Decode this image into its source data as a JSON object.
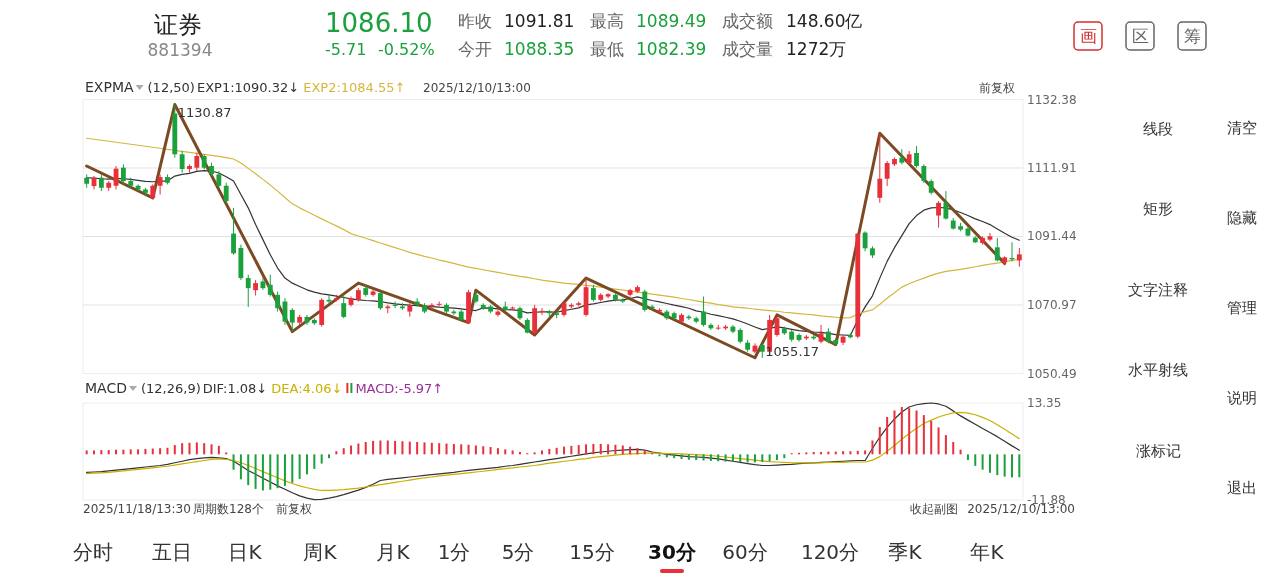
{
  "chart_data": [
    {
      "type": "other",
      "title": "证券",
      "annotations": [
        "881394",
        "1086.10",
        "-5.71",
        "-0.52%",
        "昨收",
        "1091.81",
        "今开",
        "1088.35",
        "最高",
        "1089.49",
        "最低",
        "1082.39",
        "成交额",
        "148.60亿",
        "成交量",
        "1272万",
        "画",
        "区",
        "筹"
      ]
    },
    {
      "type": "candlestick",
      "title": "EXPMA",
      "subtitle": "(12,50)",
      "legend": "top left",
      "grid": "y",
      "tick_labels": "y",
      "ylim": [
        1050.49,
        1132.38
      ],
      "yticks": [
        1132.38,
        1111.91,
        1091.44,
        1070.97,
        1050.49
      ],
      "categories": [
        null,
        null,
        null,
        null,
        null,
        null,
        null,
        null,
        null,
        null,
        null,
        null,
        null,
        null,
        null,
        null,
        null,
        null,
        null,
        null,
        null,
        null,
        null,
        null,
        null,
        null,
        null,
        null,
        null,
        null,
        null,
        null,
        null,
        null,
        null,
        null,
        null,
        null,
        null,
        null,
        null,
        null,
        null,
        null,
        null,
        null,
        null,
        null,
        null,
        null,
        null,
        null,
        null,
        null,
        null,
        null,
        null,
        null,
        null,
        null,
        null,
        null,
        null,
        null,
        null,
        null,
        null,
        null,
        null,
        null,
        null,
        null,
        null,
        null,
        null,
        null,
        null,
        null,
        null,
        null,
        null,
        null,
        null,
        null,
        null,
        null,
        null,
        null,
        null,
        null,
        null,
        null,
        null,
        null,
        null,
        null,
        null,
        null,
        null,
        null,
        null,
        null,
        null,
        null,
        null,
        null,
        null,
        null,
        null,
        null,
        null,
        null,
        null,
        null,
        null,
        null,
        null,
        null,
        null,
        null,
        null,
        null,
        null,
        null,
        null,
        null,
        null,
        null
      ],
      "ohlc": [
        [
          1109,
          1110,
          1106,
          1107.2
        ],
        [
          1106.5,
          1109.5,
          1105.5,
          1109
        ],
        [
          1109,
          1110,
          1105,
          1106
        ],
        [
          1106,
          1108,
          1105,
          1107.5
        ],
        [
          1106.6,
          1112.5,
          1105.5,
          1111.7
        ],
        [
          1112,
          1113,
          1107,
          1108
        ],
        [
          1108,
          1109,
          1106,
          1106.6
        ],
        [
          1106.6,
          1107,
          1105,
          1105.5
        ],
        [
          1105.5,
          1106,
          1103.5,
          1104.5
        ],
        [
          1103,
          1107,
          1102.5,
          1106.6
        ],
        [
          1106.6,
          1110,
          1104,
          1109.2
        ],
        [
          1109.2,
          1110,
          1107,
          1107.5
        ],
        [
          1128.2,
          1130.87,
          1115,
          1116
        ],
        [
          1116,
          1117,
          1110.5,
          1111.6
        ],
        [
          1111.6,
          1113,
          1110.5,
          1112.5
        ],
        [
          1112,
          1116.5,
          1111,
          1115.5
        ],
        [
          1115.5,
          1116,
          1111.5,
          1112
        ],
        [
          1112.5,
          1113.5,
          1109.5,
          1110.1
        ],
        [
          1110,
          1111,
          1106,
          1106.6
        ],
        [
          1106.6,
          1107.5,
          1101.5,
          1102
        ],
        [
          1092.3,
          1100,
          1086,
          1086.4
        ],
        [
          1088,
          1089,
          1078.4,
          1079
        ],
        [
          1079,
          1080,
          1070.4,
          1076
        ],
        [
          1075.4,
          1078.4,
          1073.8,
          1077.5
        ],
        [
          1078,
          1079,
          1075.5,
          1076
        ],
        [
          1077,
          1080,
          1073.5,
          1074
        ],
        [
          1074,
          1075,
          1069,
          1070
        ],
        [
          1072,
          1073,
          1065,
          1066
        ],
        [
          1069.5,
          1070,
          1063,
          1065.7
        ],
        [
          1065.7,
          1068,
          1065,
          1067.4
        ],
        [
          1067.4,
          1068,
          1065,
          1065.7
        ],
        [
          1066.5,
          1067,
          1065,
          1065.5
        ],
        [
          1065,
          1073,
          1064.5,
          1072.5
        ],
        [
          1072.5,
          1074,
          1071.5,
          1072
        ],
        [
          1072.5,
          1074,
          1072,
          1073
        ],
        [
          1071.5,
          1074,
          1067,
          1067.4
        ],
        [
          1071,
          1073.5,
          1070.5,
          1073
        ],
        [
          1072.5,
          1076,
          1072,
          1075.4
        ],
        [
          1076,
          1077,
          1073.5,
          1074
        ],
        [
          1074,
          1075.5,
          1073.5,
          1075
        ],
        [
          1074.5,
          1075,
          1069.5,
          1070
        ],
        [
          1070,
          1071,
          1068.5,
          1070.5
        ],
        [
          1071,
          1072,
          1070,
          1070.8
        ],
        [
          1070.5,
          1071.5,
          1069.5,
          1070
        ],
        [
          1069,
          1071.5,
          1067.5,
          1070.8
        ],
        [
          1072,
          1073,
          1070.5,
          1071
        ],
        [
          1070.8,
          1071.5,
          1068.5,
          1069
        ],
        [
          1070.5,
          1071.5,
          1069.5,
          1071
        ],
        [
          1071,
          1072,
          1070.5,
          1071.3
        ],
        [
          1071,
          1071.5,
          1068.5,
          1069
        ],
        [
          1069,
          1069.5,
          1068,
          1068.5
        ],
        [
          1069,
          1069.5,
          1066,
          1066.5
        ],
        [
          1065.7,
          1075.5,
          1065.5,
          1074.8
        ],
        [
          1074,
          1075,
          1071.5,
          1072
        ],
        [
          1071,
          1071.5,
          1069.5,
          1070
        ],
        [
          1070.5,
          1071,
          1068.5,
          1069
        ],
        [
          1068,
          1069.5,
          1067.5,
          1069
        ],
        [
          1070.5,
          1072,
          1069,
          1069.5
        ],
        [
          1070,
          1070.5,
          1069.5,
          1070.2
        ],
        [
          1070,
          1070.5,
          1066.5,
          1067
        ],
        [
          1066.5,
          1067,
          1062.5,
          1062.7
        ],
        [
          1062.7,
          1071,
          1062,
          1070
        ],
        [
          1069,
          1070,
          1068,
          1069.2
        ],
        [
          1069,
          1069.5,
          1067.5,
          1068.5
        ],
        [
          1068.5,
          1069,
          1067,
          1068
        ],
        [
          1068,
          1072,
          1067.5,
          1071.5
        ],
        [
          1070.5,
          1071.5,
          1070,
          1071
        ],
        [
          1071,
          1072,
          1070.5,
          1071.5
        ],
        [
          1068,
          1079,
          1067.5,
          1076.3
        ],
        [
          1076,
          1077,
          1072,
          1072.5
        ],
        [
          1072.5,
          1074.5,
          1072,
          1074
        ],
        [
          1073.5,
          1074.5,
          1073,
          1074.2
        ],
        [
          1074,
          1074.5,
          1072,
          1072.5
        ],
        [
          1072.5,
          1073,
          1071.5,
          1072
        ],
        [
          1074,
          1075.8,
          1073.5,
          1075.4
        ],
        [
          1075,
          1076.8,
          1074.5,
          1076.3
        ],
        [
          1075,
          1075.5,
          1069,
          1069.5
        ],
        [
          1070.5,
          1071,
          1069.5,
          1070
        ],
        [
          1069,
          1070,
          1068.5,
          1069.5
        ],
        [
          1069,
          1069.5,
          1066.5,
          1067
        ],
        [
          1068.5,
          1069,
          1066.5,
          1067
        ],
        [
          1066,
          1068.5,
          1065.5,
          1068
        ],
        [
          1067.5,
          1068,
          1066.5,
          1067
        ],
        [
          1067,
          1067.5,
          1065.5,
          1066
        ],
        [
          1069,
          1073.5,
          1064.5,
          1065
        ],
        [
          1065,
          1065.5,
          1063.5,
          1064
        ],
        [
          1064,
          1065,
          1063.5,
          1064.2
        ],
        [
          1064,
          1065,
          1063.5,
          1064.5
        ],
        [
          1064.5,
          1065,
          1062.5,
          1063
        ],
        [
          1063.5,
          1064,
          1059.5,
          1060
        ],
        [
          1059.7,
          1060.5,
          1057,
          1057.6
        ],
        [
          1057,
          1059.5,
          1056.5,
          1058.8
        ],
        [
          1059,
          1059.5,
          1055.17,
          1057
        ],
        [
          1057,
          1068,
          1056.5,
          1066.5
        ],
        [
          1062,
          1067.5,
          1061.5,
          1067
        ],
        [
          1064,
          1064.5,
          1062,
          1062.5
        ],
        [
          1063,
          1063.5,
          1060,
          1060.6
        ],
        [
          1062,
          1062.5,
          1060,
          1060.5
        ],
        [
          1061,
          1062,
          1060.5,
          1061.5
        ],
        [
          1061.5,
          1062,
          1060.5,
          1061
        ],
        [
          1060,
          1065,
          1059.5,
          1062.5
        ],
        [
          1063,
          1064,
          1059.5,
          1060
        ],
        [
          1060.5,
          1061,
          1059,
          1059.3
        ],
        [
          1059.7,
          1062,
          1059,
          1061.5
        ],
        [
          1062,
          1062.5,
          1061,
          1061.3
        ],
        [
          1061.5,
          1092.5,
          1061,
          1092.3
        ],
        [
          1092.6,
          1093,
          1087,
          1087.9
        ],
        [
          1087.9,
          1088.5,
          1085,
          1085.8
        ],
        [
          1103,
          1122.3,
          1101.5,
          1108.7
        ],
        [
          1108.7,
          1114,
          1106.5,
          1113.4
        ],
        [
          1113,
          1115,
          1112.5,
          1114.6
        ],
        [
          1115,
          1117.5,
          1113,
          1113.5
        ],
        [
          1113.4,
          1117,
          1113,
          1116
        ],
        [
          1116.4,
          1118.5,
          1112,
          1112.5
        ],
        [
          1112.5,
          1113,
          1107.5,
          1108
        ],
        [
          1108,
          1108.5,
          1104,
          1104.5
        ],
        [
          1097.7,
          1102,
          1094.1,
          1101.5
        ],
        [
          1101.5,
          1105,
          1096.5,
          1096.8
        ],
        [
          1096.2,
          1097,
          1093.5,
          1093.8
        ],
        [
          1094.5,
          1095.5,
          1093,
          1093.5
        ],
        [
          1093.8,
          1094.5,
          1091.5,
          1091.7
        ],
        [
          1091.1,
          1091.5,
          1089.5,
          1089.7
        ],
        [
          1089.5,
          1091.5,
          1089,
          1091
        ],
        [
          1090.5,
          1092.5,
          1090,
          1091.5
        ],
        [
          1088.2,
          1091,
          1084,
          1084.3
        ],
        [
          1083.7,
          1085.5,
          1082.8,
          1085.2
        ],
        [
          1085,
          1089.7,
          1084,
          1084.6
        ],
        [
          1084.3,
          1088,
          1082.39,
          1086.1
        ]
      ],
      "series": [
        {
          "type": "line",
          "name": "EXP1:1090.32↓",
          "color": "#333333",
          "values": [
            1109,
            1108.9,
            1108.7,
            1108.6,
            1108.8,
            1108.7,
            1108.5,
            1108.2,
            1107.9,
            1107.8,
            1108,
            1108,
            1109.5,
            1110,
            1110.3,
            1110.9,
            1111.1,
            1111,
            1110.4,
            1109.3,
            1108,
            1104,
            1100,
            1095,
            1090.5,
            1086,
            1082,
            1079,
            1077.5,
            1076.5,
            1075.5,
            1074.8,
            1074.3,
            1074,
            1073.6,
            1073.2,
            1072.8,
            1072.5,
            1072.3,
            1072.2,
            1072,
            1071.6,
            1071.3,
            1071.1,
            1070.9,
            1070.8,
            1070.7,
            1070.5,
            1070.3,
            1070.2,
            1070,
            1069.8,
            1069.5,
            1069.3,
            1070.1,
            1070,
            1069.8,
            1069.6,
            1069.5,
            1069.3,
            1068.6,
            1068.8,
            1068.9,
            1068.9,
            1068.8,
            1069.3,
            1069.7,
            1070.1,
            1071,
            1071.3,
            1071.7,
            1072.1,
            1072.4,
            1072.5,
            1072.9,
            1073.4,
            1072.8,
            1072.3,
            1071.9,
            1071.4,
            1070.9,
            1070.5,
            1070,
            1069.2,
            1068.8,
            1068.2,
            1067.8,
            1067.3,
            1066.8,
            1066.1,
            1065.3,
            1064.4,
            1063.6,
            1064,
            1064.4,
            1064.1,
            1063.7,
            1063.3,
            1063.1,
            1062.9,
            1062.8,
            1062.5,
            1062.1,
            1062,
            1061.9,
            1066.5,
            1070.4,
            1073.7,
            1079,
            1084,
            1088.1,
            1091.7,
            1095.3,
            1097.7,
            1099.3,
            1100,
            1100.1,
            1100,
            1099.4,
            1098.6,
            1097.7,
            1096.7,
            1095.9,
            1095,
            1093.7,
            1092.4,
            1091.2,
            1090.32
          ]
        },
        {
          "type": "line",
          "name": "EXP2:1084.55↑",
          "color": "#d4b73c",
          "values": [
            1120.8,
            1120.5,
            1120.2,
            1119.9,
            1119.6,
            1119.3,
            1119,
            1118.7,
            1118.4,
            1118.1,
            1117.8,
            1117.5,
            1117.2,
            1116.9,
            1116.6,
            1116.3,
            1116,
            1115.7,
            1115.4,
            1115,
            1114.6,
            1113.4,
            1111.8,
            1110.2,
            1108.5,
            1106.8,
            1105,
            1103.1,
            1101.2,
            1100,
            1098.9,
            1097.8,
            1096.7,
            1095.6,
            1094.6,
            1093.5,
            1092.3,
            1091.6,
            1090.9,
            1090.2,
            1089.5,
            1088.8,
            1088.1,
            1087.4,
            1086.7,
            1086.1,
            1085.5,
            1085,
            1084.4,
            1083.9,
            1083.4,
            1082.8,
            1082.3,
            1081.9,
            1081.5,
            1081.1,
            1080.7,
            1080.3,
            1079.9,
            1079.5,
            1079.2,
            1078.8,
            1078.4,
            1078.1,
            1077.8,
            1077.5,
            1077.3,
            1077.1,
            1076.8,
            1076.6,
            1076.3,
            1076,
            1075.7,
            1075.4,
            1075.1,
            1074.8,
            1074.5,
            1074.2,
            1073.9,
            1073.6,
            1073.3,
            1072.9,
            1072.6,
            1072.2,
            1071.8,
            1071.5,
            1071.1,
            1070.8,
            1070.4,
            1070.2,
            1070,
            1069.7,
            1069.5,
            1069.3,
            1069.1,
            1068.8,
            1068.6,
            1068.4,
            1068.2,
            1068,
            1067.7,
            1067.5,
            1067.3,
            1067.1,
            1067.2,
            1068.2,
            1069,
            1069.5,
            1071.2,
            1073,
            1074.6,
            1076.3,
            1077.3,
            1078.2,
            1079,
            1079.8,
            1080.5,
            1081,
            1081.3,
            1081.6,
            1082,
            1082.4,
            1082.8,
            1083.2,
            1083.5,
            1083.9,
            1084.3,
            1084.55
          ]
        },
        {
          "type": "line",
          "color": "#7b4a22",
          "values": [
            1112.5,
            null,
            null,
            null,
            null,
            null,
            null,
            null,
            null,
            1103,
            null,
            null,
            1130.87,
            null,
            null,
            null,
            null,
            null,
            null,
            null,
            null,
            null,
            null,
            null,
            null,
            null,
            null,
            null,
            1063,
            null,
            null,
            null,
            null,
            null,
            null,
            null,
            null,
            1077.5,
            null,
            null,
            null,
            null,
            null,
            null,
            null,
            null,
            null,
            null,
            null,
            null,
            null,
            null,
            1065.7,
            1075.4,
            null,
            null,
            null,
            null,
            null,
            null,
            null,
            1062,
            null,
            null,
            null,
            null,
            null,
            null,
            1079,
            null,
            null,
            null,
            null,
            null,
            null,
            null,
            null,
            null,
            null,
            null,
            null,
            null,
            null,
            null,
            null,
            null,
            null,
            null,
            null,
            null,
            null,
            1055.2,
            null,
            null,
            1068,
            null,
            null,
            null,
            null,
            null,
            null,
            null,
            1059.1,
            null,
            null,
            null,
            null,
            null,
            1122.3,
            null,
            null,
            null,
            null,
            null,
            null,
            null,
            null,
            null,
            null,
            null,
            null,
            null,
            null,
            null,
            null,
            1083.4,
            null,
            null
          ]
        }
      ],
      "annotations": [
        "1130.87",
        "1055.17",
        "2025/12/10/13:00",
        "前复权"
      ]
    },
    {
      "type": "bar",
      "title": "MACD",
      "subtitle": "(12,26,9)",
      "legend": "top left",
      "tick_labels": "y",
      "ylim": [
        -11.88,
        13.35
      ],
      "yticks": [
        13.35,
        -11.88
      ],
      "categories": [
        null,
        null,
        null,
        null,
        null,
        null,
        null,
        null,
        null,
        null,
        null,
        null,
        null,
        null,
        null,
        null,
        null,
        null,
        null,
        null,
        null,
        null,
        null,
        null,
        null,
        null,
        null,
        null,
        null,
        null,
        null,
        null,
        null,
        null,
        null,
        null,
        null,
        null,
        null,
        null,
        null,
        null,
        null,
        null,
        null,
        null,
        null,
        null,
        null,
        null,
        null,
        null,
        null,
        null,
        null,
        null,
        null,
        null,
        null,
        null,
        null,
        null,
        null,
        null,
        null,
        null,
        null,
        null,
        null,
        null,
        null,
        null,
        null,
        null,
        null,
        null,
        null,
        null,
        null,
        null,
        null,
        null,
        null,
        null,
        null,
        null,
        null,
        null,
        null,
        null,
        null,
        null,
        null,
        null,
        null,
        null,
        null,
        null,
        null,
        null,
        null,
        null,
        null,
        null,
        null,
        null,
        null,
        null,
        null,
        null,
        null,
        null,
        null,
        null,
        null,
        null,
        null,
        null,
        null,
        null,
        null,
        null,
        null,
        null,
        null,
        null,
        null,
        null
      ],
      "series": [
        {
          "name": "DIF:1.08↓",
          "type": "line",
          "color": "#333333",
          "values": [
            -4.7,
            -4.6,
            -4.5,
            -4.3,
            -4.1,
            -3.9,
            -3.7,
            -3.5,
            -3.3,
            -3.1,
            -2.9,
            -2.6,
            -2.2,
            -1.8,
            -1.4,
            -1.1,
            -0.9,
            -0.8,
            -0.9,
            -1.1,
            -1.8,
            -3,
            -4.2,
            -5.2,
            -6.2,
            -7.2,
            -8.2,
            -9.1,
            -10,
            -10.8,
            -11.4,
            -11.8,
            -11.7,
            -11.4,
            -11,
            -10.5,
            -9.9,
            -9.3,
            -8.6,
            -7.8,
            -6.8,
            -6.5,
            -6.3,
            -6.1,
            -5.9,
            -5.7,
            -5.5,
            -5.3,
            -5.1,
            -4.9,
            -4.7,
            -4.4,
            -4.2,
            -4,
            -3.8,
            -3.6,
            -3.4,
            -3.1,
            -2.9,
            -2.6,
            -2.3,
            -2,
            -1.7,
            -1.4,
            -1.1,
            -0.8,
            -0.5,
            -0.2,
            0.1,
            0.4,
            0.6,
            0.8,
            1,
            1.1,
            1.2,
            1.3,
            1.1,
            0.6,
            0.3,
            0,
            -0.2,
            -0.4,
            -0.6,
            -0.7,
            -0.8,
            -1,
            -1.2,
            -1.5,
            -1.8,
            -2.1,
            -2.4,
            -2.7,
            -2.9,
            -2.9,
            -2.8,
            -2.7,
            -2.6,
            -2.4,
            -2.3,
            -2.2,
            -2.1,
            -2,
            -1.9,
            -1.8,
            -1.7,
            -1.6,
            -1.6,
            1.5,
            4.5,
            7,
            9.2,
            11,
            12.3,
            12.9,
            13.2,
            13.35,
            13.1,
            12.5,
            11.3,
            10,
            8.9,
            7.8,
            6.7,
            5.7,
            4.6,
            3.4,
            2.2,
            1.08
          ]
        },
        {
          "name": "DEA:4.06↓",
          "type": "line",
          "color": "#c9b000",
          "values": [
            -5,
            -4.9,
            -4.8,
            -4.7,
            -4.5,
            -4.3,
            -4.1,
            -3.9,
            -3.7,
            -3.5,
            -3.3,
            -3.1,
            -2.8,
            -2.5,
            -2.2,
            -1.9,
            -1.6,
            -1.3,
            -1.2,
            -1.3,
            -1.6,
            -2.2,
            -2.9,
            -3.7,
            -4.5,
            -5.3,
            -6.1,
            -6.9,
            -7.6,
            -8.2,
            -8.7,
            -9.1,
            -9.4,
            -9.4,
            -9.3,
            -9.2,
            -9,
            -8.8,
            -8.5,
            -8.2,
            -7.9,
            -7.6,
            -7.3,
            -7,
            -6.7,
            -6.4,
            -6.1,
            -5.9,
            -5.6,
            -5.4,
            -5.2,
            -5,
            -4.8,
            -4.6,
            -4.4,
            -4.2,
            -3.9,
            -3.7,
            -3.5,
            -3.3,
            -3.1,
            -2.9,
            -2.6,
            -2.3,
            -2.1,
            -1.8,
            -1.6,
            -1.3,
            -1.1,
            -0.8,
            -0.6,
            -0.4,
            -0.2,
            0,
            0.1,
            0.2,
            0.3,
            0.3,
            0.3,
            0.2,
            0.2,
            0.1,
            0,
            -0.1,
            -0.2,
            -0.3,
            -0.5,
            -0.7,
            -0.9,
            -1.1,
            -1.3,
            -1.5,
            -1.7,
            -1.9,
            -2,
            -2.1,
            -2.2,
            -2.2,
            -2.2,
            -2.2,
            -2.2,
            -2.1,
            -2.1,
            -2.1,
            -2,
            -2,
            -2,
            -1.5,
            -0.6,
            0.8,
            2.3,
            3.9,
            5.4,
            6.8,
            8,
            8.9,
            9.7,
            10.3,
            10.8,
            10.9,
            10.7,
            10.3,
            9.6,
            8.8,
            7.7,
            6.5,
            5.3,
            4.06
          ]
        },
        {
          "name": "MACD:-5.97↑",
          "type": "bar",
          "color": "#9b2d9b",
          "colors": [
            "#e8303a",
            "#e8303a",
            "#e8303a",
            "#e8303a",
            "#e8303a",
            "#e8303a",
            "#e8303a",
            "#e8303a",
            "#e8303a",
            "#e8303a",
            "#e8303a",
            "#e8303a",
            "#e8303a",
            "#e8303a",
            "#e8303a",
            "#e8303a",
            "#e8303a",
            "#e8303a",
            "#e8303a",
            "#e8303a",
            "#1aa03c",
            "#1aa03c",
            "#1aa03c",
            "#1aa03c",
            "#1aa03c",
            "#1aa03c",
            "#1aa03c",
            "#1aa03c",
            "#1aa03c",
            "#1aa03c",
            "#1aa03c",
            "#1aa03c",
            "#1aa03c",
            "#1aa03c",
            "#e8303a",
            "#e8303a",
            "#e8303a",
            "#e8303a",
            "#e8303a",
            "#e8303a",
            "#e8303a",
            "#e8303a",
            "#e8303a",
            "#e8303a",
            "#e8303a",
            "#e8303a",
            "#e8303a",
            "#e8303a",
            "#e8303a",
            "#e8303a",
            "#e8303a",
            "#e8303a",
            "#e8303a",
            "#e8303a",
            "#e8303a",
            "#e8303a",
            "#e8303a",
            "#e8303a",
            "#e8303a",
            "#e8303a",
            "#e8303a",
            "#e8303a",
            "#e8303a",
            "#e8303a",
            "#e8303a",
            "#e8303a",
            "#e8303a",
            "#e8303a",
            "#e8303a",
            "#e8303a",
            "#e8303a",
            "#e8303a",
            "#e8303a",
            "#e8303a",
            "#e8303a",
            "#e8303a",
            "#e8303a",
            "#e8303a",
            "#1aa03c",
            "#1aa03c",
            "#1aa03c",
            "#1aa03c",
            "#1aa03c",
            "#1aa03c",
            "#1aa03c",
            "#1aa03c",
            "#1aa03c",
            "#1aa03c",
            "#1aa03c",
            "#1aa03c",
            "#1aa03c",
            "#1aa03c",
            "#1aa03c",
            "#1aa03c",
            "#1aa03c",
            "#1aa03c",
            "#e8303a",
            "#e8303a",
            "#e8303a",
            "#e8303a",
            "#e8303a",
            "#e8303a",
            "#e8303a",
            "#e8303a",
            "#e8303a",
            "#e8303a",
            "#e8303a",
            "#e8303a",
            "#e8303a",
            "#e8303a",
            "#e8303a",
            "#e8303a",
            "#e8303a",
            "#e8303a",
            "#e8303a",
            "#e8303a",
            "#e8303a",
            "#e8303a",
            "#e8303a",
            "#e8303a",
            "#1aa03c",
            "#1aa03c",
            "#1aa03c",
            "#1aa03c",
            "#1aa03c",
            "#1aa03c",
            "#1aa03c",
            "#1aa03c"
          ],
          "values": [
            1,
            1,
            1.1,
            1.1,
            1.2,
            1.2,
            1.3,
            1.3,
            1.4,
            1.5,
            1.6,
            1.7,
            2.4,
            2.9,
            3,
            3.1,
            2.9,
            2.6,
            2.2,
            0.5,
            -4,
            -6.5,
            -8,
            -9,
            -9.4,
            -9.2,
            -8.8,
            -8.2,
            -7.4,
            -6.4,
            -5.2,
            -3.8,
            -2.4,
            -1,
            0.8,
            1.6,
            2.3,
            2.8,
            3.2,
            3.5,
            3.6,
            3.6,
            3.5,
            3.4,
            3.3,
            3.2,
            3.1,
            3,
            2.9,
            2.8,
            2.7,
            2.6,
            2.5,
            2.3,
            2.1,
            1.9,
            1.6,
            1.3,
            1,
            0.6,
            0.3,
            0.5,
            1,
            1.4,
            1.7,
            2,
            2.2,
            2.4,
            2.6,
            2.7,
            2.7,
            2.6,
            2.5,
            2.3,
            2,
            1.6,
            1.1,
            0.3,
            -0.5,
            -0.8,
            -1,
            -1.2,
            -1.4,
            -1.5,
            -1.6,
            -1.7,
            -1.8,
            -1.9,
            -2,
            -2,
            -2.1,
            -2.1,
            -2,
            -1.8,
            -1.5,
            -1,
            0.3,
            0.4,
            0.5,
            0.6,
            0.6,
            0.7,
            0.7,
            0.8,
            0.8,
            0.9,
            1,
            3.6,
            7.1,
            9.7,
            11.4,
            12.3,
            12,
            11.4,
            10.2,
            8.7,
            7,
            5,
            3.2,
            1.2,
            -1.5,
            -3,
            -4,
            -4.8,
            -5.4,
            -5.8,
            -6,
            -5.97
          ]
        }
      ],
      "annotations": [
        "2025/11/18/13:30",
        "周期数128个",
        "前复权",
        "收起副图",
        "2025/12/10/13:00"
      ]
    },
    {
      "type": "other",
      "annotations": [
        "线段",
        "矩形",
        "文字注释",
        "水平射线",
        "涨标记",
        "清空",
        "隐藏",
        "管理",
        "说明",
        "退出"
      ]
    },
    {
      "type": "other",
      "annotations": [
        "分时",
        "五日",
        "日K",
        "周K",
        "月K",
        "1分",
        "5分",
        "15分",
        "30分",
        "60分",
        "120分",
        "季K",
        "年K"
      ]
    }
  ]
}
